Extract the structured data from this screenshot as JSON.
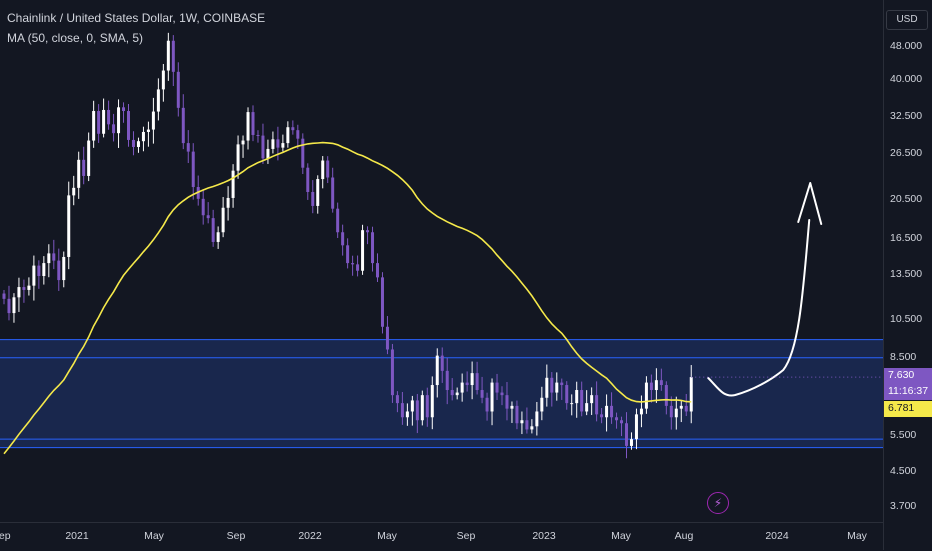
{
  "header": {
    "title": "Chainlink / United States Dollar, 1W, COINBASE",
    "indicator": "MA (50, close, 0, SMA, 5)"
  },
  "price_axis": {
    "currency": "USD",
    "current_price": "7.630",
    "countdown": "11:16:37",
    "ma_value": "6.781"
  },
  "colors": {
    "background": "#131722",
    "candle_up": "#ffffff",
    "candle_down": "#7e57c2",
    "ma_line": "#f5e94a",
    "zone_fill": "#1b2a55",
    "zone_border": "#2962ff",
    "projection": "#ffffff",
    "price_tag": "#7e57c2",
    "ma_tag": "#f5e94a"
  },
  "chart_data": {
    "type": "candlestick",
    "title": "Chainlink / United States Dollar, 1W, COINBASE",
    "scale": "log",
    "y_ticks": [
      "48.000",
      "40.000",
      "32.500",
      "26.500",
      "20.500",
      "16.500",
      "13.500",
      "10.500",
      "8.500",
      "5.500",
      "4.500",
      "3.700"
    ],
    "x_ticks": [
      "Sep",
      "2021",
      "May",
      "Sep",
      "2022",
      "May",
      "Sep",
      "2023",
      "May",
      "Aug",
      "2024",
      "May"
    ],
    "weekly_closes": [
      11.8,
      10.9,
      11.9,
      12.6,
      12.4,
      12.7,
      14.2,
      13.4,
      14.4,
      15.2,
      14.6,
      13.1,
      14.9,
      21.0,
      21.9,
      25.6,
      23.4,
      28.5,
      33.6,
      29.6,
      33.8,
      31.2,
      29.7,
      34.3,
      33.6,
      28.6,
      27.5,
      28.4,
      29.9,
      30.3,
      33.5,
      37.9,
      42.1,
      49.7,
      41.8,
      34.2,
      28.1,
      26.8,
      22.0,
      20.6,
      18.8,
      18.5,
      16.2,
      17.1,
      19.6,
      20.7,
      24.1,
      27.9,
      28.5,
      33.4,
      29.4,
      29.3,
      25.8,
      27.2,
      28.7,
      27.4,
      28.1,
      30.7,
      30.2,
      28.8,
      24.5,
      21.4,
      19.8,
      23.0,
      25.5,
      23.2,
      19.5,
      17.1,
      15.9,
      14.4,
      14.3,
      13.8,
      17.3,
      17.1,
      14.4,
      13.3,
      10.1,
      8.9,
      6.9,
      6.6,
      6.1,
      6.3,
      6.7,
      6.0,
      6.9,
      6.1,
      7.3,
      8.6,
      7.9,
      7.1,
      6.9,
      7.0,
      7.4,
      7.3,
      7.8,
      7.1,
      6.8,
      6.3,
      7.4,
      7.0,
      6.9,
      6.4,
      6.5,
      5.9,
      6.0,
      5.7,
      5.8,
      6.3,
      6.8,
      7.6,
      7.0,
      7.4,
      7.3,
      6.6,
      6.6,
      7.1,
      6.3,
      6.6,
      6.9,
      6.2,
      6.1,
      6.5,
      6.1,
      6.0,
      5.9,
      5.2,
      5.4,
      6.2,
      6.4,
      7.4,
      7.1,
      7.5,
      7.3,
      6.5,
      6.1,
      6.4,
      6.5,
      6.3,
      7.63
    ],
    "ma_series": {
      "name": "MA (50, close, 0, SMA, 5)",
      "last": 6.781
    },
    "range_zone": {
      "upper": [
        9.4,
        8.5
      ],
      "lower": [
        5.4,
        5.15
      ]
    },
    "projection_peak": 22.5
  }
}
